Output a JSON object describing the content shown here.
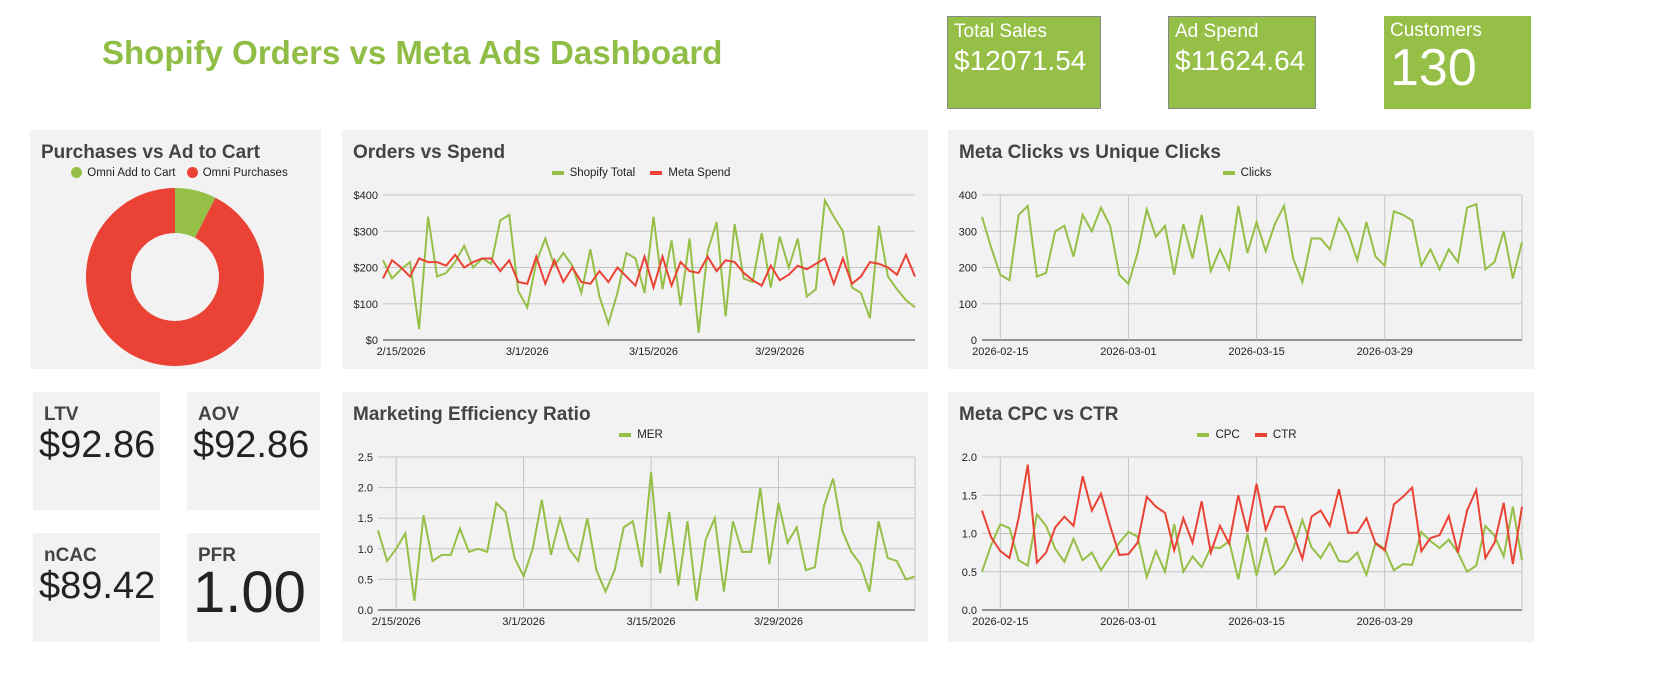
{
  "header": {
    "title": "Shopify Orders vs Meta Ads Dashboard"
  },
  "kpis": [
    {
      "label": "Total Sales",
      "value": "$12071.54"
    },
    {
      "label": "Ad Spend",
      "value": "$11624.64"
    },
    {
      "label": "Customers",
      "value": "130"
    }
  ],
  "metrics": [
    {
      "label": "LTV",
      "value": "$92.86"
    },
    {
      "label": "AOV",
      "value": "$92.86"
    },
    {
      "label": "nCAC",
      "value": "$89.42"
    },
    {
      "label": "PFR",
      "value": "1.00"
    }
  ],
  "colors": {
    "green": "#95bf47",
    "red": "#ea4335"
  },
  "chart_data": [
    {
      "type": "pie",
      "title": "Purchases vs Ad to Cart",
      "legend": [
        "Omni Add to Cart",
        "Omni Purchases"
      ],
      "values": [
        7.5,
        92.5
      ],
      "donut": true
    },
    {
      "type": "line",
      "title": "Orders vs Spend",
      "start_date": "2026-02-13",
      "date_format": "m/d/yyyy",
      "xticks": [
        "2/15/2026",
        "3/1/2026",
        "3/15/2026",
        "3/29/2026"
      ],
      "yticks": [
        "$0",
        "$100",
        "$200",
        "$300",
        "$400"
      ],
      "ylim": [
        0,
        400
      ],
      "series": [
        {
          "name": "Shopify Total",
          "color": "#95bf47",
          "values": [
            220,
            170,
            195,
            215,
            30,
            340,
            175,
            185,
            215,
            260,
            200,
            225,
            210,
            330,
            345,
            135,
            90,
            215,
            280,
            205,
            240,
            205,
            130,
            250,
            120,
            45,
            130,
            240,
            225,
            130,
            340,
            140,
            275,
            95,
            280,
            20,
            245,
            325,
            65,
            320,
            170,
            160,
            295,
            145,
            285,
            200,
            280,
            120,
            140,
            385,
            340,
            300,
            145,
            130,
            60,
            315,
            175,
            140,
            110,
            90
          ]
        },
        {
          "name": "Meta Spend",
          "color": "#ea4335",
          "values": [
            170,
            220,
            200,
            175,
            225,
            215,
            215,
            205,
            235,
            200,
            215,
            225,
            225,
            190,
            220,
            160,
            155,
            230,
            155,
            220,
            160,
            200,
            160,
            155,
            190,
            160,
            200,
            175,
            150,
            230,
            145,
            230,
            150,
            215,
            190,
            185,
            230,
            190,
            220,
            215,
            185,
            165,
            150,
            205,
            165,
            180,
            205,
            195,
            210,
            225,
            155,
            225,
            155,
            175,
            215,
            210,
            200,
            180,
            235,
            175
          ]
        }
      ]
    },
    {
      "type": "line",
      "title": "Meta Clicks vs Unique Clicks",
      "xticks": [
        "2026-02-15",
        "2026-03-01",
        "2026-03-15",
        "2026-03-29"
      ],
      "yticks": [
        "0",
        "100",
        "200",
        "300",
        "400"
      ],
      "ylim": [
        0,
        400
      ],
      "series": [
        {
          "name": "Clicks",
          "color": "#95bf47",
          "values": [
            340,
            255,
            180,
            165,
            345,
            370,
            175,
            185,
            300,
            315,
            230,
            345,
            300,
            365,
            315,
            180,
            155,
            240,
            360,
            285,
            315,
            180,
            320,
            225,
            345,
            190,
            250,
            195,
            370,
            240,
            325,
            245,
            320,
            370,
            225,
            160,
            280,
            280,
            250,
            335,
            295,
            220,
            325,
            230,
            205,
            355,
            345,
            330,
            205,
            250,
            195,
            250,
            215,
            365,
            375,
            195,
            215,
            300,
            170,
            270
          ]
        }
      ]
    },
    {
      "type": "line",
      "title": "Marketing Efficiency Ratio",
      "xticks": [
        "2/15/2026",
        "3/1/2026",
        "3/15/2026",
        "3/29/2026"
      ],
      "yticks": [
        "0.0",
        "0.5",
        "1.0",
        "1.5",
        "2.0",
        "2.5"
      ],
      "ylim": [
        0,
        2.5
      ],
      "series": [
        {
          "name": "MER",
          "color": "#95bf47",
          "values": [
            1.3,
            0.8,
            1.0,
            1.25,
            0.15,
            1.55,
            0.8,
            0.9,
            0.9,
            1.33,
            0.95,
            1.0,
            0.95,
            1.75,
            1.6,
            0.85,
            0.55,
            1.0,
            1.8,
            0.9,
            1.5,
            1.0,
            0.8,
            1.5,
            0.65,
            0.3,
            0.65,
            1.35,
            1.45,
            0.7,
            2.25,
            0.6,
            1.6,
            0.4,
            1.45,
            0.15,
            1.15,
            1.5,
            0.3,
            1.45,
            0.95,
            0.95,
            2.0,
            0.75,
            1.75,
            1.1,
            1.35,
            0.65,
            0.7,
            1.7,
            2.15,
            1.3,
            0.95,
            0.75,
            0.3,
            1.45,
            0.85,
            0.8,
            0.5,
            0.55
          ]
        }
      ]
    },
    {
      "type": "line",
      "title": "Meta CPC vs CTR",
      "xticks": [
        "2026-02-15",
        "2026-03-01",
        "2026-03-15",
        "2026-03-29"
      ],
      "yticks": [
        "0.0",
        "0.5",
        "1.0",
        "1.5",
        "2.0"
      ],
      "ylim": [
        0,
        2
      ],
      "series": [
        {
          "name": "CPC",
          "color": "#95bf47",
          "values": [
            0.5,
            0.85,
            1.12,
            1.07,
            0.65,
            0.58,
            1.25,
            1.1,
            0.8,
            0.63,
            0.93,
            0.65,
            0.75,
            0.52,
            0.7,
            0.88,
            1.02,
            0.96,
            0.43,
            0.77,
            0.5,
            1.12,
            0.5,
            0.7,
            0.56,
            0.82,
            0.81,
            0.9,
            0.4,
            1.0,
            0.45,
            0.95,
            0.47,
            0.58,
            0.8,
            1.18,
            0.82,
            0.68,
            0.88,
            0.64,
            0.63,
            0.75,
            0.46,
            0.88,
            0.8,
            0.52,
            0.6,
            0.59,
            1.02,
            0.9,
            0.81,
            0.92,
            0.75,
            0.5,
            0.58,
            1.1,
            0.97,
            0.7,
            1.35,
            0.65
          ]
        },
        {
          "name": "CTR",
          "color": "#ea4335",
          "values": [
            1.3,
            0.95,
            0.77,
            0.68,
            1.2,
            1.9,
            0.62,
            0.75,
            1.08,
            1.22,
            1.1,
            1.75,
            1.3,
            1.52,
            1.1,
            0.72,
            0.73,
            0.88,
            1.48,
            1.35,
            1.27,
            0.78,
            1.2,
            0.88,
            1.42,
            0.75,
            1.1,
            0.87,
            1.5,
            1.02,
            1.65,
            1.05,
            1.35,
            1.35,
            1.0,
            0.67,
            1.22,
            1.3,
            1.1,
            1.58,
            1.01,
            1.01,
            1.2,
            0.87,
            0.78,
            1.38,
            1.48,
            1.6,
            0.77,
            0.94,
            0.98,
            1.23,
            0.75,
            1.3,
            1.57,
            0.68,
            0.88,
            1.4,
            0.6,
            1.35
          ]
        }
      ]
    }
  ]
}
